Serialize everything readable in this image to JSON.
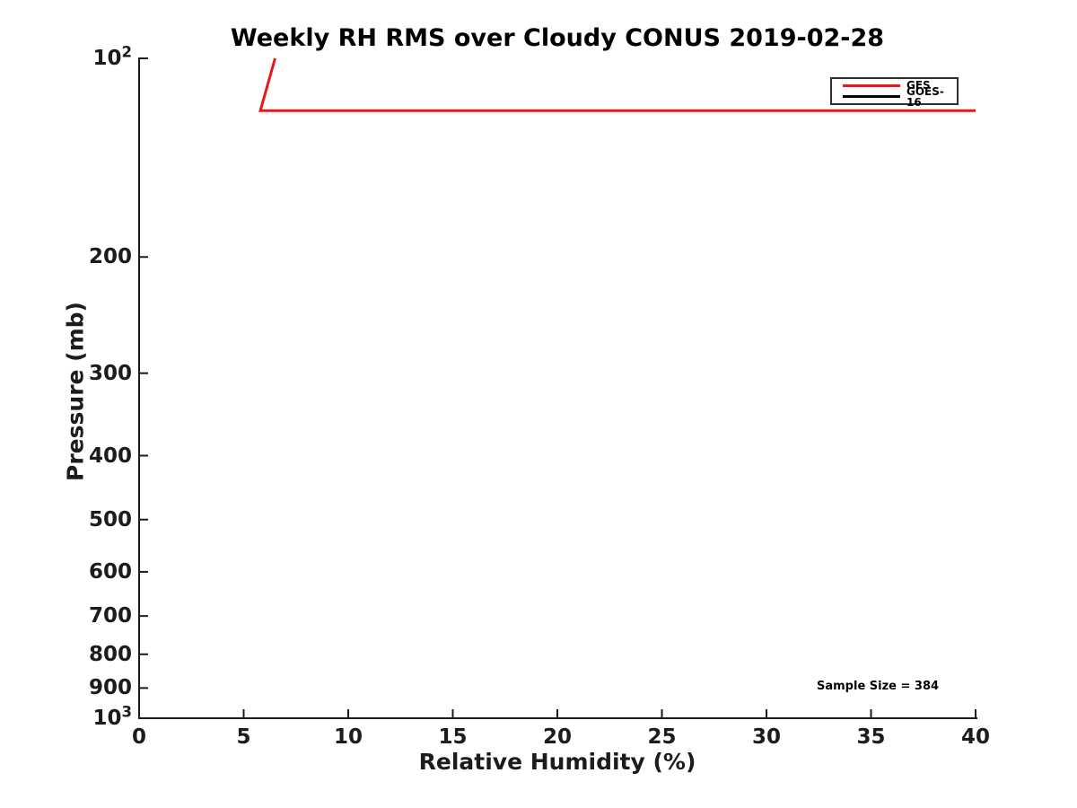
{
  "chart_data": {
    "type": "line",
    "title": "Weekly RH RMS over Cloudy CONUS 2019-02-28",
    "xlabel": "Relative Humidity (%)",
    "ylabel": "Pressure (mb)",
    "xlim": [
      0,
      40
    ],
    "ylim": [
      100,
      1000
    ],
    "yscale": "log",
    "y_inverted": true,
    "grid": false,
    "axis_color": "#1c1c1c",
    "x_ticks": [
      0,
      5,
      10,
      15,
      20,
      25,
      30,
      35,
      40
    ],
    "x_tick_labels": [
      "0",
      "5",
      "10",
      "15",
      "20",
      "25",
      "30",
      "35",
      "40"
    ],
    "y_ticks": [
      100,
      200,
      300,
      400,
      500,
      600,
      700,
      800,
      900,
      1000
    ],
    "y_tick_labels": [
      "10²",
      "200",
      "300",
      "400",
      "500",
      "600",
      "700",
      "800",
      "900",
      "10³"
    ],
    "legend": {
      "position": "upper right",
      "border": true
    },
    "series": [
      {
        "name": "GFS",
        "color": "#ed1515",
        "points": [
          [
            6.5,
            100
          ],
          [
            5.8,
            120
          ],
          [
            40,
            120
          ]
        ]
      },
      {
        "name": "GOES-16",
        "color": "#000000",
        "points": [],
        "note": "no data visible within axis range"
      }
    ],
    "annotation": "Sample Size = 384"
  }
}
